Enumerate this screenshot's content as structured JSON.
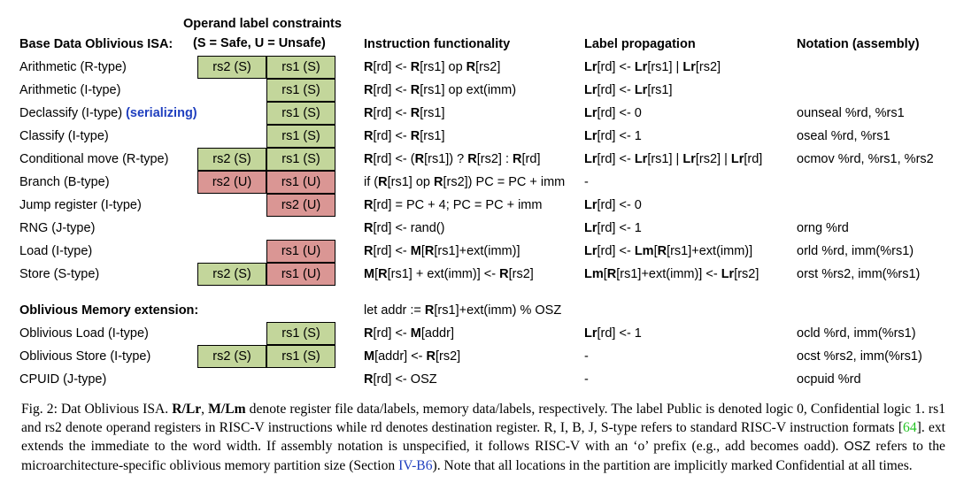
{
  "headers": {
    "operand_title": "Operand label constraints",
    "operand_sub": "(S = Safe, U = Unsafe)",
    "base": "Base Data Oblivious ISA:",
    "func": "Instruction functionality",
    "prop": "Label propagation",
    "notation": "Notation (assembly)"
  },
  "rows": [
    {
      "name": "Arithmetic (R-type)",
      "serial": "",
      "rs2": "rs2 (S)",
      "rs1": "rs1 (S)",
      "func": [
        [
          "b",
          "R"
        ],
        [
          "n",
          "[rd] <- "
        ],
        [
          "b",
          "R"
        ],
        [
          "n",
          "[rs1] op "
        ],
        [
          "b",
          "R"
        ],
        [
          "n",
          "[rs2]"
        ]
      ],
      "prop": [
        [
          "b",
          "Lr"
        ],
        [
          "n",
          "[rd] <- "
        ],
        [
          "b",
          "Lr"
        ],
        [
          "n",
          "[rs1] | "
        ],
        [
          "b",
          "Lr"
        ],
        [
          "n",
          "[rs2]"
        ]
      ],
      "nota": ""
    },
    {
      "name": "Arithmetic (I-type)",
      "serial": "",
      "rs2": "",
      "rs1": "rs1 (S)",
      "func": [
        [
          "b",
          "R"
        ],
        [
          "n",
          "[rd] <- "
        ],
        [
          "b",
          "R"
        ],
        [
          "n",
          "[rs1] op ext(imm)"
        ]
      ],
      "prop": [
        [
          "b",
          "Lr"
        ],
        [
          "n",
          "[rd] <- "
        ],
        [
          "b",
          "Lr"
        ],
        [
          "n",
          "[rs1]"
        ]
      ],
      "nota": ""
    },
    {
      "name": "Declassify (I-type) ",
      "serial": "(serializing)",
      "rs2": "",
      "rs1": "rs1 (S)",
      "func": [
        [
          "b",
          "R"
        ],
        [
          "n",
          "[rd] <- "
        ],
        [
          "b",
          "R"
        ],
        [
          "n",
          "[rs1]"
        ]
      ],
      "prop": [
        [
          "b",
          "Lr"
        ],
        [
          "n",
          "[rd] <- 0"
        ]
      ],
      "nota": "ounseal %rd, %rs1"
    },
    {
      "name": "Classify (I-type)",
      "serial": "",
      "rs2": "",
      "rs1": "rs1 (S)",
      "func": [
        [
          "b",
          "R"
        ],
        [
          "n",
          "[rd] <- "
        ],
        [
          "b",
          "R"
        ],
        [
          "n",
          "[rs1]"
        ]
      ],
      "prop": [
        [
          "b",
          "Lr"
        ],
        [
          "n",
          "[rd] <- 1"
        ]
      ],
      "nota": "oseal %rd, %rs1"
    },
    {
      "name": "Conditional move (R-type)",
      "serial": "",
      "rs2": "rs2 (S)",
      "rs1": "rs1 (S)",
      "func": [
        [
          "b",
          "R"
        ],
        [
          "n",
          "[rd] <- ("
        ],
        [
          "b",
          "R"
        ],
        [
          "n",
          "[rs1]) ? "
        ],
        [
          "b",
          "R"
        ],
        [
          "n",
          "[rs2] :  "
        ],
        [
          "b",
          "R"
        ],
        [
          "n",
          "[rd]"
        ]
      ],
      "prop": [
        [
          "b",
          "Lr"
        ],
        [
          "n",
          "[rd] <- "
        ],
        [
          "b",
          "Lr"
        ],
        [
          "n",
          "[rs1] | "
        ],
        [
          "b",
          "Lr"
        ],
        [
          "n",
          "[rs2] | "
        ],
        [
          "b",
          "Lr"
        ],
        [
          "n",
          "[rd]"
        ]
      ],
      "nota": "ocmov %rd, %rs1, %rs2"
    },
    {
      "name": "Branch (B-type)",
      "serial": "",
      "rs2": "rs2 (U)",
      "rs1": "rs1 (U)",
      "func": [
        [
          "n",
          "if ("
        ],
        [
          "b",
          "R"
        ],
        [
          "n",
          "[rs1] op "
        ],
        [
          "b",
          "R"
        ],
        [
          "n",
          "[rs2]) PC = PC + imm"
        ]
      ],
      "prop": [
        [
          "n",
          "-"
        ]
      ],
      "nota": ""
    },
    {
      "name": "Jump register (I-type)",
      "serial": "",
      "rs2": "",
      "rs1": "rs2 (U)",
      "func": [
        [
          "b",
          "R"
        ],
        [
          "n",
          "[rd] = PC + 4; PC = PC + imm"
        ]
      ],
      "prop": [
        [
          "b",
          "Lr"
        ],
        [
          "n",
          "[rd] <- 0"
        ]
      ],
      "nota": ""
    },
    {
      "name": "RNG (J-type)",
      "serial": "",
      "rs2": "",
      "rs1": "",
      "func": [
        [
          "b",
          "R"
        ],
        [
          "n",
          "[rd] <- rand()"
        ]
      ],
      "prop": [
        [
          "b",
          "Lr"
        ],
        [
          "n",
          "[rd] <- 1"
        ]
      ],
      "nota": "orng %rd"
    },
    {
      "name": "Load (I-type)",
      "serial": "",
      "rs2": "",
      "rs1": "rs1 (U)",
      "func": [
        [
          "b",
          "R"
        ],
        [
          "n",
          "[rd] <- "
        ],
        [
          "b",
          "M"
        ],
        [
          "n",
          "["
        ],
        [
          "b",
          "R"
        ],
        [
          "n",
          "[rs1]+ext(imm)]"
        ]
      ],
      "prop": [
        [
          "b",
          "Lr"
        ],
        [
          "n",
          "[rd] <- "
        ],
        [
          "b",
          "Lm"
        ],
        [
          "n",
          "["
        ],
        [
          "b",
          "R"
        ],
        [
          "n",
          "[rs1]+ext(imm)]"
        ]
      ],
      "nota": "orld %rd, imm(%rs1)"
    },
    {
      "name": "Store (S-type)",
      "serial": "",
      "rs2": "rs2 (S)",
      "rs1": "rs1 (U)",
      "func": [
        [
          "b",
          "M"
        ],
        [
          "n",
          "["
        ],
        [
          "b",
          "R"
        ],
        [
          "n",
          "[rs1] + ext(imm)] <- "
        ],
        [
          "b",
          "R"
        ],
        [
          "n",
          "[rs2]"
        ]
      ],
      "prop": [
        [
          "b",
          "Lm"
        ],
        [
          "n",
          "["
        ],
        [
          "b",
          "R"
        ],
        [
          "n",
          "[rs1]+ext(imm)] <- "
        ],
        [
          "b",
          "Lr"
        ],
        [
          "n",
          "[rs2]"
        ]
      ],
      "nota": "orst %rs2, imm(%rs1)"
    }
  ],
  "ext": {
    "title": "Oblivious Memory extension:",
    "let": [
      [
        "n",
        "let addr := "
      ],
      [
        "b",
        "R"
      ],
      [
        "n",
        "[rs1]+ext(imm) % OSZ"
      ]
    ]
  },
  "ext_rows": [
    {
      "name": "Oblivious Load (I-type)",
      "rs2": "",
      "rs1": "rs1 (S)",
      "func": [
        [
          "b",
          "R"
        ],
        [
          "n",
          "[rd] <- "
        ],
        [
          "b",
          "M"
        ],
        [
          "n",
          "[addr]"
        ]
      ],
      "prop": [
        [
          "b",
          "Lr"
        ],
        [
          "n",
          "[rd] <- 1"
        ]
      ],
      "nota": "ocld %rd, imm(%rs1)"
    },
    {
      "name": "Oblivious Store (I-type)",
      "rs2": "rs2 (S)",
      "rs1": "rs1 (S)",
      "func": [
        [
          "b",
          "M"
        ],
        [
          "n",
          "[addr] <- "
        ],
        [
          "b",
          "R"
        ],
        [
          "n",
          "[rs2]"
        ]
      ],
      "prop": [
        [
          "n",
          "-"
        ]
      ],
      "nota": "ocst %rs2, imm(%rs1)"
    },
    {
      "name": "CPUID (J-type)",
      "rs2": "",
      "rs1": "",
      "func": [
        [
          "b",
          "R"
        ],
        [
          "n",
          "[rd] <- OSZ"
        ]
      ],
      "prop": [
        [
          "n",
          "-"
        ]
      ],
      "nota": "ocpuid %rd"
    }
  ],
  "caption": {
    "p1": "Fig. 2:  Dat Oblivious ISA. ",
    "p1b": "R/Lr",
    "p2": ", ",
    "p2b": "M/Lm",
    "p3": " denote register file data/labels, memory data/labels, respectively. The label Public is denoted logic 0, Confidential logic 1. rs1 and rs2 denote operand registers in RISC-V instructions while rd denotes destination register. R, I, B, J, S-type refers to standard RISC-V instruction formats [",
    "ref1": "64",
    "p4": "]. ext extends the immediate to the word width. If assembly notation is unspecified, it follows RISC-V with an ‘o’ prefix (e.g., add becomes oadd). ",
    "osz": "OSZ",
    "p5": " refers to the microarchitecture-specific oblivious memory partition size (Section ",
    "ref2": "IV-B6",
    "p6": "). Note that all locations in the partition are implicitly marked Confidential at all times."
  }
}
